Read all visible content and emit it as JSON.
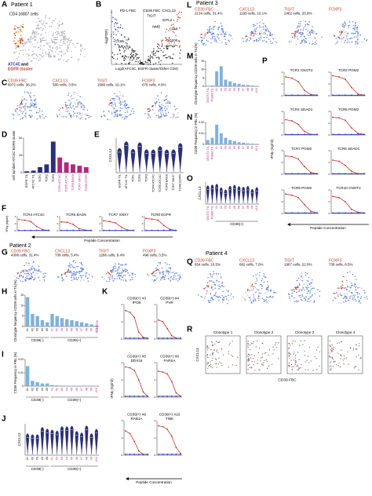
{
  "A": {
    "letter": "A",
    "patient": "Patient 1",
    "count": "CD4 16807 cells",
    "legend": [
      "ATC4C",
      "and",
      "EGFR cluster"
    ]
  },
  "B": {
    "letter": "B",
    "headers": [
      "PD-1 FBC",
      "CD39 FBC",
      "CXCL13"
    ],
    "genes": [
      "TIGIT",
      "IGFL2",
      "NMB",
      "CPM",
      "CCL5",
      "ANXA1",
      "CD200",
      "ETV1"
    ],
    "xlabel": "Log2(ATC4C, EGFR cluster/Other CD4)",
    "ylabel": "-log(FDR)"
  },
  "C": {
    "letter": "C",
    "plots": [
      {
        "marker": "CD39 FBC",
        "count": "6072 cells, 36.2%"
      },
      {
        "marker": "CXCL13",
        "count": "580 cells, 3.5%"
      },
      {
        "marker": "TIGIT",
        "count": "1689 cells, 10.1%"
      },
      {
        "marker": "FOXP3",
        "count": "679 cells, 4.0%"
      }
    ]
  },
  "D": {
    "letter": "D",
    "ylabel": "cell number/ ATC4C EGFR cluster",
    "categories": [
      "EGFR TIL",
      "ATC4C TIL",
      "TCR1",
      "TCR2",
      "TCR3",
      "TCR4 ATC4C",
      "TCR5 ATC4C",
      "TCR6 BAG6",
      "TCR7 SNX7",
      "TCR8 EGFR"
    ],
    "values": [
      2,
      3,
      8,
      12,
      45,
      22,
      15,
      12,
      10,
      8
    ],
    "colors": [
      "#2b2f7a",
      "#2b2f7a",
      "#2b2f7a",
      "#2b2f7a",
      "#2b2f7a",
      "#b3267a",
      "#b3267a",
      "#b3267a",
      "#b3267a",
      "#b3267a"
    ],
    "label_colors": [
      "#000",
      "#000",
      "#000",
      "#000",
      "#000",
      "#b3267a",
      "#b3267a",
      "#b3267a",
      "#b3267a",
      "#b3267a"
    ],
    "ylim": [
      0,
      50
    ],
    "yticks": [
      0,
      25,
      50
    ]
  },
  "E": {
    "letter": "E",
    "ylabel": "CXCL13",
    "categories": [
      "EGFR TIL",
      "ATC4C TIL",
      "TCR1",
      "TCR2",
      "TCR3",
      "TCR4 ATC4C",
      "TCR5 ATC4C",
      "TCR6 BAG6",
      "TCR7 SNX7",
      "TCR8 EGFR"
    ]
  },
  "F": {
    "letter": "F",
    "ylabel": "IFNγ (ng/ml)",
    "xlabel": "Peptide Concentration",
    "ylim": [
      0,
      4
    ],
    "yticks": [
      0,
      2,
      4
    ],
    "charts": [
      {
        "title": [
          "TCR4 ATC4C"
        ],
        "red": [
          3.2,
          3,
          2.6,
          1.2,
          0.3,
          0.1
        ],
        "blue": [
          0.1,
          0.1,
          0.1,
          0.1,
          0.1,
          0.1
        ]
      },
      {
        "title": [
          "TCR6 BAG6"
        ],
        "red": [
          2.5,
          2.4,
          1.8,
          0.6,
          0.2,
          0.1
        ],
        "blue": [
          0.1,
          0.1,
          0.1,
          0.1,
          0.1,
          0.1
        ]
      },
      {
        "title": [
          "TCR7 SNX7"
        ],
        "red": [
          2.8,
          2.6,
          2.2,
          1,
          0.2,
          0.1
        ],
        "blue": [
          0.1,
          0.1,
          0.1,
          0.1,
          0.1,
          0.1
        ]
      },
      {
        "title": [
          "TCR8 EGFR"
        ],
        "red": [
          3.5,
          3.3,
          3,
          1.5,
          0.4,
          0.1
        ],
        "blue": [
          0.1,
          0.1,
          0.1,
          0.1,
          0.1,
          0.1
        ]
      }
    ]
  },
  "G": {
    "letter": "G",
    "patient": "Patient 2",
    "plots": [
      {
        "marker": "CD39 FBC",
        "count": "4308 cells, 31.4%"
      },
      {
        "marker": "CXCL13",
        "count": "738 cells, 5.4%"
      },
      {
        "marker": "TIGIT",
        "count": "1286 cells, 9.4%"
      },
      {
        "marker": "FOXP3",
        "count": "498 cells, 3.5%"
      }
    ]
  },
  "H": {
    "letter": "H",
    "ylabel": "Clonotype frequency /CD39 cells in TIL(%)",
    "color": "#7fb2d9",
    "ylim": [
      0,
      15
    ],
    "yticks": [
      0,
      5,
      10,
      15
    ],
    "annotation": "0.0007%",
    "groups": [
      {
        "name": "CD39(-)",
        "categories": [
          "#1",
          "#2",
          "#3",
          "#4",
          "#5"
        ],
        "values": [
          14,
          6,
          5,
          3,
          2
        ]
      },
      {
        "name": "CD39(+)",
        "label_color": "#b3267a",
        "categories": [
          "#1",
          "#2",
          "#3",
          "#4",
          "#5",
          "#6",
          "#7",
          "#8",
          "#9",
          "#10"
        ],
        "values": [
          6,
          5,
          4,
          3.5,
          3,
          2.5,
          2,
          1.5,
          1,
          0.5
        ]
      }
    ]
  },
  "I": {
    "letter": "I",
    "ylabel": "CD39 Frequency in PBL (%)",
    "color": "#7fb2d9",
    "ylim": [
      0,
      0.02
    ],
    "yticks": [
      0,
      0.01,
      0.02
    ],
    "groups": [
      {
        "name": "CD39(-)",
        "categories": [
          "#1",
          "#2",
          "#3",
          "#4",
          "#5"
        ],
        "values": [
          0.015,
          0.004,
          0.003,
          0.002,
          0.002
        ]
      },
      {
        "name": "CD39(+)",
        "label_color": "#b3267a",
        "categories": [
          "#1",
          "#2",
          "#3",
          "#4",
          "#5",
          "#6",
          "#7",
          "#8",
          "#9",
          "#10"
        ],
        "values": [
          0.0008,
          0.0005,
          0.0004,
          0.0003,
          0.0003,
          0.0002,
          0.0002,
          0.0001,
          0.0001,
          0.0001
        ]
      }
    ]
  },
  "J": {
    "letter": "J",
    "ylabel": "CXCL13",
    "groups": [
      {
        "name": "CD39(-)",
        "categories": [
          "#1",
          "#2",
          "#3",
          "#4",
          "#5"
        ]
      },
      {
        "name": "CD39(+)",
        "label_color": "#b3267a",
        "categories": [
          "#1",
          "#2",
          "#3",
          "#4",
          "#5",
          "#6",
          "#7",
          "#8",
          "#9",
          "#10"
        ]
      }
    ]
  },
  "K": {
    "letter": "K",
    "ylabel": "IFNγ (ng/ml)",
    "xlabel": "Peptide Concentration",
    "ylim": [
      0,
      4
    ],
    "yticks": [
      0,
      2,
      4
    ],
    "charts": [
      {
        "title": [
          "CD39(+) #3",
          "IPO8"
        ],
        "red": [
          3.3,
          3.1,
          2.5,
          0.8,
          0.2,
          0.1
        ],
        "blue": [
          0.1,
          0.1,
          0.1,
          0.1,
          0.1,
          0.1
        ]
      },
      {
        "title": [
          "CD39(+) #4",
          "PVR"
        ],
        "red": [
          2.2,
          2,
          1.2,
          0.4,
          0.1,
          0.1
        ],
        "blue": [
          0.1,
          0.1,
          0.1,
          0.1,
          0.1,
          0.1
        ]
      },
      {
        "title": [
          "CD39(+) #5",
          "DDX18"
        ],
        "red": [
          3.5,
          3.4,
          3.1,
          2,
          0.6,
          0.1
        ],
        "blue": [
          0.1,
          0.1,
          0.1,
          0.1,
          0.1,
          0.1
        ]
      },
      {
        "title": [
          "CD39(+) #6",
          "FARSA"
        ],
        "red": [
          3,
          2.9,
          2.7,
          1.8,
          0.5,
          0.1
        ],
        "blue": [
          0.1,
          0.1,
          0.1,
          0.1,
          0.1,
          0.1
        ]
      },
      {
        "title": [
          "CD39(+) #9",
          "RAB1A"
        ],
        "red": [
          2.8,
          2.5,
          1.6,
          0.5,
          0.1,
          0.1
        ],
        "blue": [
          0.1,
          0.1,
          0.1,
          0.1,
          0.1,
          0.1
        ]
      },
      {
        "title": [
          "CD39(+) #10",
          "TNIK"
        ],
        "red": [
          3.4,
          3.3,
          3,
          2.2,
          0.9,
          0.2
        ],
        "blue": [
          0.1,
          0.1,
          0.1,
          0.1,
          0.1,
          0.1
        ]
      }
    ]
  },
  "L": {
    "letter": "L",
    "patient": "Patient 3",
    "plots": [
      {
        "marker": "CD39 FBC",
        "count": "2134 cells, 31.4%"
      },
      {
        "marker": "CXCL13",
        "count": "1195 cells, 10.1%"
      },
      {
        "marker": "TIGIT",
        "count": "2462 cells, 20.9%"
      },
      {
        "marker": "FOXP3"
      }
    ]
  },
  "M": {
    "letter": "M",
    "ylabel": "Clonotype frequency /CD39 cells in TIL(%)",
    "color": "#7fb2d9",
    "label_color": "#b3267a",
    "ylim": [
      0,
      15
    ],
    "yticks": [
      0,
      5,
      10,
      15
    ],
    "categories": [
      "CNOT2 TIL",
      "PGM2 TIL",
      "#1",
      "#2",
      "#3",
      "#4",
      "#5",
      "#6",
      "#7",
      "#8",
      "#9",
      "#10"
    ],
    "values": [
      0.3,
      0.5,
      9,
      12,
      4,
      3,
      2,
      1.5,
      1,
      0.8,
      0.5,
      0.3
    ]
  },
  "N": {
    "letter": "N",
    "ylabel": "CD39 Frequency in PBL (%)",
    "color": "#7fb2d9",
    "label_color": "#b3267a",
    "ylim": [
      0,
      0.02
    ],
    "yticks": [
      0,
      0.01,
      0.02
    ],
    "categories": [
      "CNOT2 TIL",
      "PGM2 TIL",
      "#1",
      "#2",
      "#3",
      "#4",
      "#5",
      "#6",
      "#7",
      "#8",
      "#9",
      "#10"
    ],
    "values": [
      0.004,
      0.006,
      0.018,
      0.01,
      0.006,
      0.004,
      0.003,
      0.002,
      0.0015,
      0.001,
      0.0008,
      0.0005
    ]
  },
  "O": {
    "letter": "O",
    "ylabel": "CXCL13",
    "groups": [
      {
        "label_color": "#b3267a",
        "categories": [
          "CNOT2 TIL",
          "PGM2 TIL"
        ]
      },
      {
        "name": "CD39(+)",
        "label_color": "#b3267a",
        "categories": [
          "#1",
          "#2",
          "#3",
          "#4",
          "#5",
          "#6",
          "#7",
          "#8",
          "#9",
          "#10"
        ]
      }
    ]
  },
  "P": {
    "letter": "P",
    "ylabel": "IFNγ (ng/ml)",
    "xlabel": "Peptide Concentration",
    "ylim": [
      0,
      4
    ],
    "yticks": [
      0,
      2,
      4
    ],
    "charts": [
      {
        "title": [
          "TCR1 CNOT2"
        ],
        "red": [
          3.2,
          3,
          2.4,
          0.9,
          0.2,
          0.1
        ],
        "blue": [
          0.1,
          0.1,
          0.1,
          0.1,
          0.1,
          0.1
        ]
      },
      {
        "title": [
          "TCR2 PGM2"
        ],
        "red": [
          3.4,
          3.2,
          2.8,
          1.4,
          0.3,
          0.1
        ],
        "blue": [
          0.1,
          0.1,
          0.1,
          0.1,
          0.1,
          0.1
        ]
      },
      {
        "title": [
          "TCR4 SDAD1"
        ],
        "red": [
          2.6,
          2.4,
          1.8,
          0.6,
          0.1,
          0.1
        ],
        "blue": [
          0.1,
          0.1,
          0.1,
          0.1,
          0.1,
          0.1
        ]
      },
      {
        "title": [
          "TCR5 PGM2"
        ],
        "red": [
          3,
          2.9,
          2.5,
          1.2,
          0.3,
          0.1
        ],
        "blue": [
          0.1,
          0.1,
          0.1,
          0.1,
          0.1,
          0.1
        ]
      },
      {
        "title": [
          "TCR7 PGM2"
        ],
        "red": [
          3.1,
          3,
          2.6,
          1.3,
          0.3,
          0.1
        ],
        "blue": [
          0.1,
          0.1,
          0.1,
          0.1,
          0.1,
          0.1
        ]
      },
      {
        "title": [
          "TCR8 SDAD1"
        ],
        "red": [
          2.4,
          2.2,
          1.5,
          0.5,
          0.1,
          0.1
        ],
        "blue": [
          0.1,
          0.1,
          0.1,
          0.1,
          0.1,
          0.1
        ]
      },
      {
        "title": [
          "TCR9 PGM2"
        ],
        "red": [
          3.3,
          3.1,
          2.7,
          1.5,
          0.4,
          0.1
        ],
        "blue": [
          0.1,
          0.1,
          0.1,
          0.1,
          0.1,
          0.1
        ]
      },
      {
        "title": [
          "TCR10 CNOT2"
        ],
        "red": [
          2.9,
          2.7,
          2,
          0.7,
          0.2,
          0.1
        ],
        "blue": [
          0.1,
          0.1,
          0.1,
          0.1,
          0.1,
          0.1
        ]
      }
    ]
  },
  "Q": {
    "letter": "Q",
    "patient": "Patient 4",
    "plots": [
      {
        "marker": "CD39 FBC",
        "count": "654 cells, 10.5%"
      },
      {
        "marker": "CXCL13",
        "count": "682 cells, 7.0%"
      },
      {
        "marker": "TIGIT",
        "count": "1967 cells, 22.0%"
      },
      {
        "marker": "FOXP3",
        "count": "738 cells, 8.5%"
      }
    ]
  },
  "R": {
    "letter": "R",
    "ylabel": "CXCL13",
    "xlabel": "CD39 FBC",
    "plots": [
      "Clonotype 1",
      "Clonotype 2",
      "Clonotype 3",
      "Clonotype 4"
    ]
  }
}
